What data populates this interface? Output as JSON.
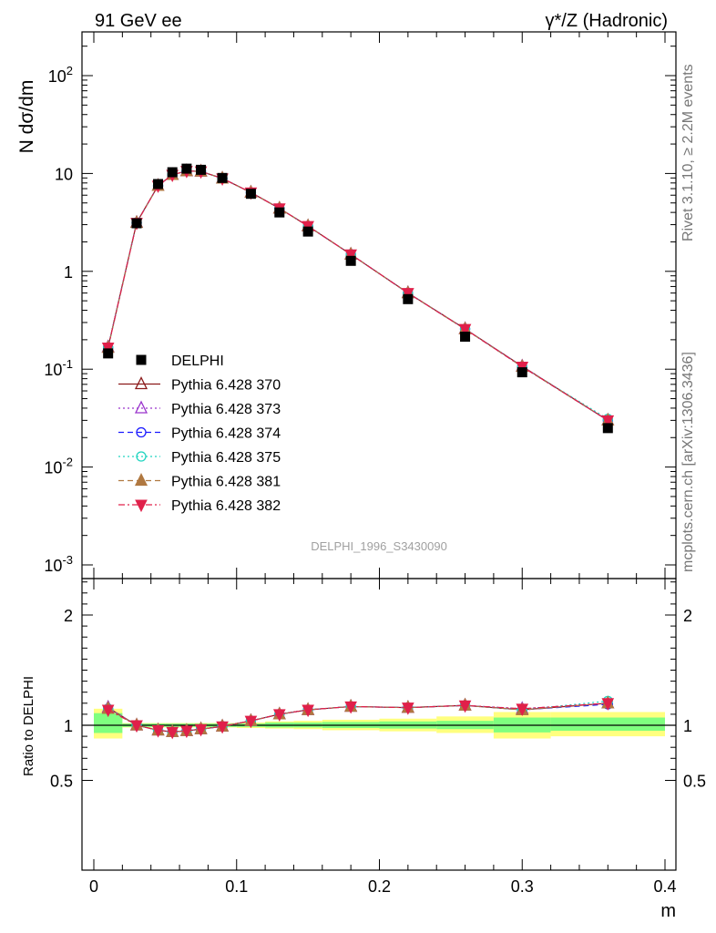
{
  "header": {
    "left": "91 GeV ee",
    "right_super": "γ*/Z (Hadronic)"
  },
  "side_labels": {
    "rivet": "Rivet 3.1.10, ≥ 2.2M events",
    "mcplots": "mcplots.cern.ch [arXiv:1306.3436]"
  },
  "watermark": "DELPHI_1996_S3430090",
  "colors": {
    "data": "#000000",
    "band_inner": "#7fff7f",
    "band_outer": "#ffff7f",
    "s370": "#8b1a1a",
    "s373": "#9933cc",
    "s374": "#1a1aff",
    "s375": "#20d4c0",
    "s381": "#b07840",
    "s382": "#e0204a"
  },
  "chart_data": [
    {
      "type": "line",
      "title": "",
      "ylabel": "N dσ/dm",
      "xlabel": "m",
      "yscale": "log",
      "xlim": [
        0,
        0.4
      ],
      "ylim": [
        0.001,
        200
      ],
      "legend_position": "left-middle",
      "x": [
        0.01,
        0.03,
        0.045,
        0.055,
        0.065,
        0.075,
        0.09,
        0.11,
        0.13,
        0.15,
        0.18,
        0.22,
        0.26,
        0.3,
        0.36
      ],
      "data": {
        "name": "DELPHI",
        "values": [
          0.145,
          3.1,
          7.8,
          10.3,
          11.2,
          10.9,
          9.0,
          6.2,
          4.0,
          2.55,
          1.28,
          0.52,
          0.215,
          0.093,
          0.025
        ]
      },
      "series": [
        {
          "name": "Pythia 6.428 370",
          "marker": "open-triangle-up",
          "dash": "solid",
          "values": [
            0.168,
            3.15,
            7.5,
            9.7,
            10.6,
            10.5,
            8.9,
            6.4,
            4.4,
            2.9,
            1.49,
            0.602,
            0.258,
            0.107,
            0.03
          ]
        },
        {
          "name": "Pythia 6.428 373",
          "marker": "open-triangle-up",
          "dash": "dotted",
          "values": [
            0.168,
            3.15,
            7.5,
            9.7,
            10.6,
            10.5,
            8.9,
            6.4,
            4.4,
            2.9,
            1.49,
            0.602,
            0.258,
            0.107,
            0.03
          ]
        },
        {
          "name": "Pythia 6.428 374",
          "marker": "open-circle",
          "dash": "dashed",
          "values": [
            0.167,
            3.14,
            7.5,
            9.7,
            10.6,
            10.5,
            8.9,
            6.4,
            4.4,
            2.9,
            1.49,
            0.6,
            0.257,
            0.106,
            0.03
          ]
        },
        {
          "name": "Pythia 6.428 375",
          "marker": "open-circle",
          "dash": "dotted",
          "values": [
            0.167,
            3.14,
            7.5,
            9.7,
            10.6,
            10.5,
            8.9,
            6.4,
            4.4,
            2.9,
            1.49,
            0.601,
            0.258,
            0.106,
            0.031
          ]
        },
        {
          "name": "Pythia 6.428 381",
          "marker": "filled-triangle-up",
          "dash": "dashed",
          "values": [
            0.166,
            3.14,
            7.5,
            9.7,
            10.6,
            10.5,
            8.9,
            6.4,
            4.4,
            2.9,
            1.49,
            0.6,
            0.257,
            0.106,
            0.03
          ]
        },
        {
          "name": "Pythia 6.428 382",
          "marker": "filled-triangle-down",
          "dash": "dashdot",
          "values": [
            0.166,
            3.13,
            7.5,
            9.7,
            10.6,
            10.5,
            8.9,
            6.4,
            4.4,
            2.9,
            1.49,
            0.6,
            0.257,
            0.106,
            0.03
          ]
        }
      ],
      "y_tick_labels": [
        "10^-3",
        "10^-2",
        "10^-1",
        "1",
        "10",
        "10^2"
      ]
    },
    {
      "type": "line",
      "title": "",
      "ylabel": "Ratio to DELPHI",
      "xlabel": "m",
      "xlim": [
        0,
        0.4
      ],
      "ylim": [
        0.37,
        2.4
      ],
      "y_tick_labels": [
        "0.5",
        "1",
        "2"
      ],
      "x_tick_labels": [
        "0",
        "0.1",
        "0.2",
        "0.3",
        "0.4"
      ],
      "bands": {
        "edges": [
          0,
          0.02,
          0.04,
          0.05,
          0.06,
          0.07,
          0.08,
          0.1,
          0.12,
          0.14,
          0.16,
          0.2,
          0.24,
          0.28,
          0.32,
          0.4
        ],
        "inner": [
          [
            0.93,
            1.11
          ],
          [
            0.985,
            1.015
          ],
          [
            0.985,
            1.015
          ],
          [
            0.985,
            1.015
          ],
          [
            0.985,
            1.015
          ],
          [
            0.985,
            1.015
          ],
          [
            0.985,
            1.015
          ],
          [
            0.985,
            1.015
          ],
          [
            0.98,
            1.025
          ],
          [
            0.98,
            1.025
          ],
          [
            0.975,
            1.03
          ],
          [
            0.97,
            1.035
          ],
          [
            0.965,
            1.04
          ],
          [
            0.935,
            1.07
          ],
          [
            0.95,
            1.07
          ]
        ],
        "outer": [
          [
            0.88,
            1.15
          ],
          [
            0.98,
            1.02
          ],
          [
            0.98,
            1.02
          ],
          [
            0.98,
            1.02
          ],
          [
            0.98,
            1.02
          ],
          [
            0.98,
            1.02
          ],
          [
            0.98,
            1.02
          ],
          [
            0.975,
            1.025
          ],
          [
            0.97,
            1.035
          ],
          [
            0.965,
            1.04
          ],
          [
            0.955,
            1.05
          ],
          [
            0.945,
            1.06
          ],
          [
            0.93,
            1.08
          ],
          [
            0.88,
            1.12
          ],
          [
            0.9,
            1.12
          ]
        ]
      },
      "series": [
        {
          "name": "Pythia 6.428 370",
          "values": [
            1.16,
            1.0,
            0.955,
            0.94,
            0.95,
            0.965,
            0.99,
            1.04,
            1.1,
            1.14,
            1.17,
            1.16,
            1.18,
            1.14,
            1.2
          ]
        },
        {
          "name": "Pythia 6.428 373",
          "values": [
            1.16,
            1.0,
            0.955,
            0.94,
            0.95,
            0.965,
            0.99,
            1.04,
            1.1,
            1.14,
            1.17,
            1.16,
            1.18,
            1.15,
            1.2
          ]
        },
        {
          "name": "Pythia 6.428 374",
          "values": [
            1.15,
            1.0,
            0.955,
            0.94,
            0.95,
            0.965,
            0.99,
            1.04,
            1.1,
            1.14,
            1.17,
            1.16,
            1.18,
            1.14,
            1.19
          ]
        },
        {
          "name": "Pythia 6.428 375",
          "values": [
            1.15,
            1.0,
            0.955,
            0.94,
            0.95,
            0.965,
            0.99,
            1.04,
            1.1,
            1.14,
            1.17,
            1.16,
            1.18,
            1.14,
            1.22
          ]
        },
        {
          "name": "Pythia 6.428 381",
          "values": [
            1.15,
            1.0,
            0.955,
            0.94,
            0.95,
            0.965,
            0.99,
            1.04,
            1.1,
            1.14,
            1.17,
            1.16,
            1.18,
            1.14,
            1.2
          ]
        },
        {
          "name": "Pythia 6.428 382",
          "values": [
            1.14,
            1.0,
            0.955,
            0.94,
            0.95,
            0.965,
            0.99,
            1.04,
            1.1,
            1.14,
            1.17,
            1.16,
            1.18,
            1.15,
            1.2
          ]
        }
      ]
    }
  ]
}
